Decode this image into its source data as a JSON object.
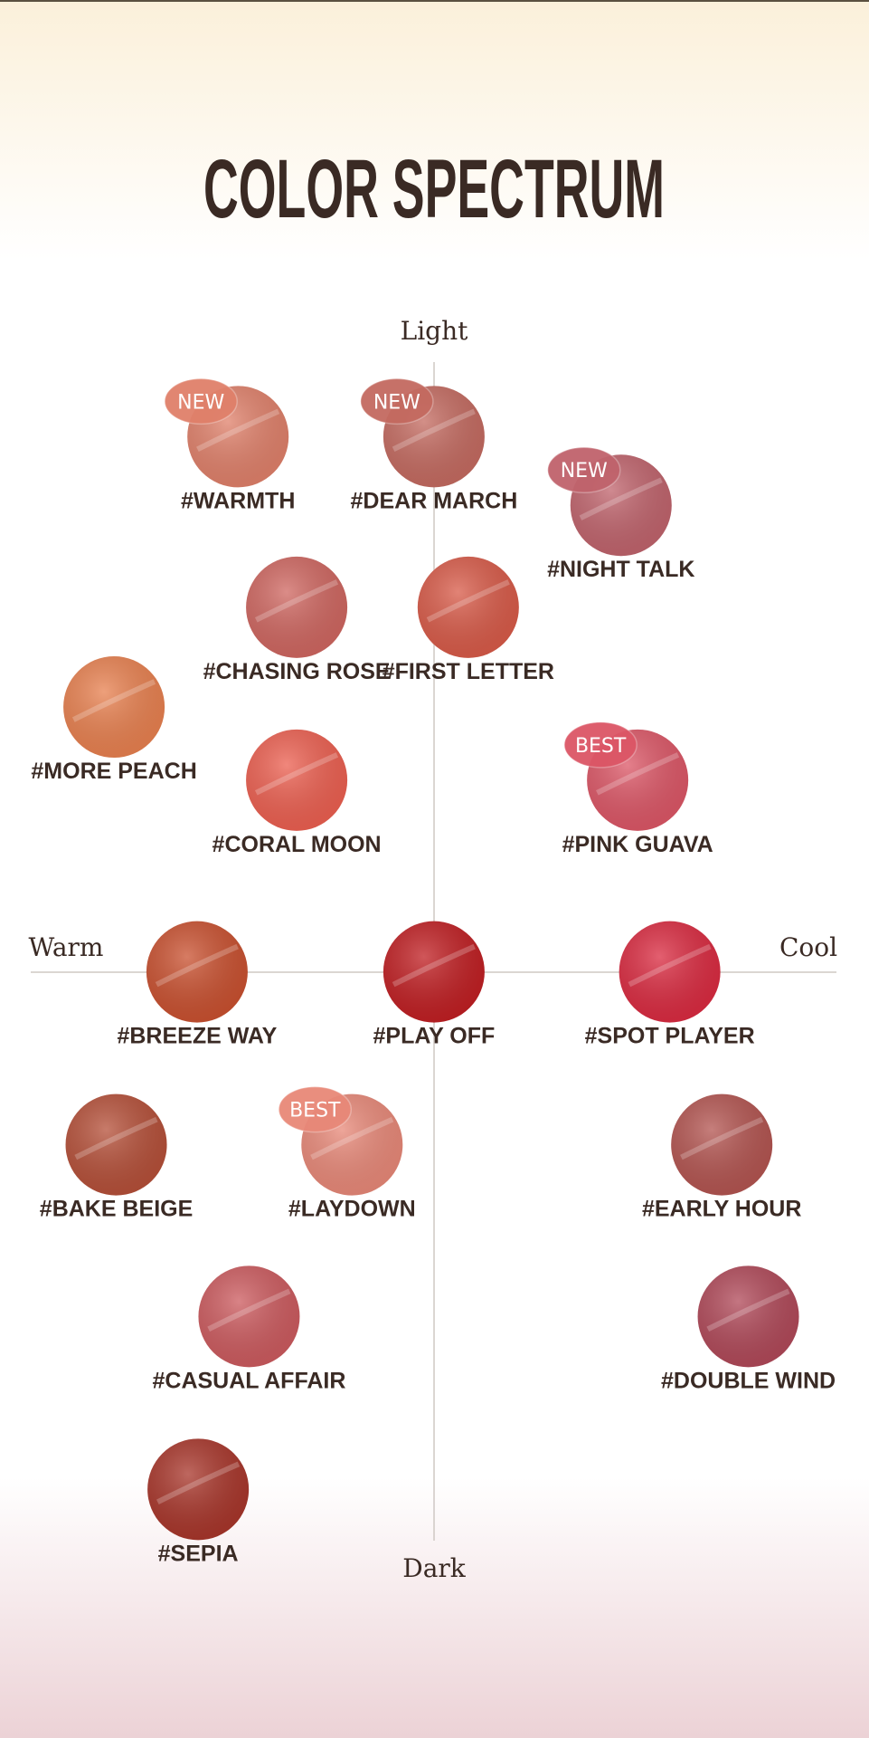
{
  "title": "COLOR SPECTRUM",
  "axes": {
    "top": "Light",
    "bottom": "Dark",
    "left": "Warm",
    "right": "Cool"
  },
  "swatches": [
    {
      "name": "#WARMTH",
      "badge": "NEW",
      "color": "#e0806a"
    },
    {
      "name": "#DEAR MARCH",
      "badge": "NEW",
      "color": "#c46a60"
    },
    {
      "name": "#NIGHT TALK",
      "badge": "NEW",
      "color": "#c0636c"
    },
    {
      "name": "#CHASING ROSE",
      "color": "#cf6660"
    },
    {
      "name": "#FIRST LETTER",
      "color": "#d85a48"
    },
    {
      "name": "#MORE PEACH",
      "color": "#e8804f"
    },
    {
      "name": "#CORAL MOON",
      "color": "#ec5f50"
    },
    {
      "name": "#PINK GUAVA",
      "badge": "BEST",
      "color": "#dc5666"
    },
    {
      "name": "#BREEZE WAY",
      "color": "#c9502f"
    },
    {
      "name": "#PLAY OFF",
      "color": "#c01e22"
    },
    {
      "name": "#SPOT PLAYER",
      "color": "#da2a40"
    },
    {
      "name": "#BAKE BEIGE",
      "color": "#b54f38"
    },
    {
      "name": "#LAYDOWN",
      "badge": "BEST",
      "color": "#e88878"
    },
    {
      "name": "#EARLY HOUR",
      "color": "#b35450"
    },
    {
      "name": "#CASUAL AFFAIR",
      "color": "#cc5a5e"
    },
    {
      "name": "#DOUBLE WIND",
      "color": "#b04858"
    },
    {
      "name": "#SEPIA",
      "color": "#a8352a"
    }
  ]
}
